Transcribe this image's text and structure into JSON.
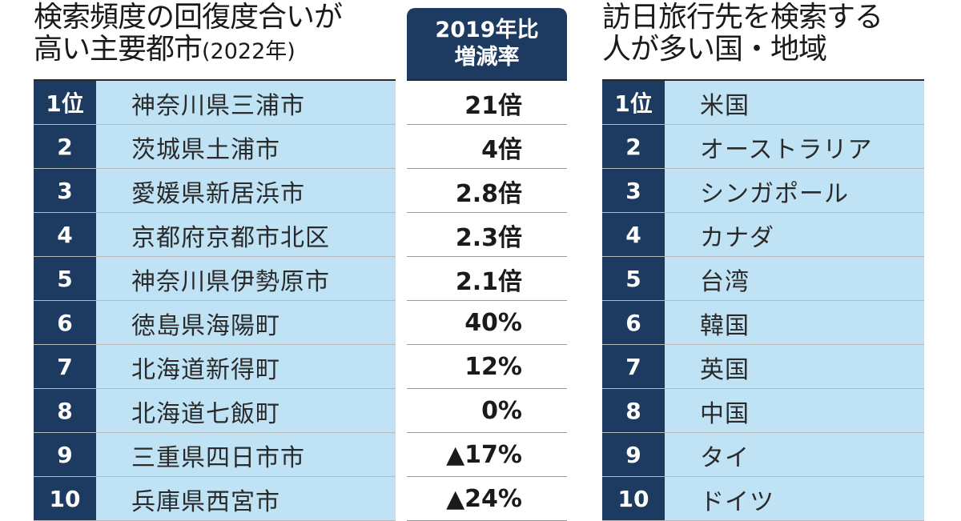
{
  "left": {
    "title_line1": "検索頻度の回復度合いが",
    "title_line2": "高い主要都市",
    "title_year": "(2022年)",
    "rate_header_line1": "2019年比",
    "rate_header_line2": "増減率",
    "rows": [
      {
        "rank": "1位",
        "name": "神奈川県三浦市",
        "rate": "21倍"
      },
      {
        "rank": "2",
        "name": "茨城県土浦市",
        "rate": "4倍"
      },
      {
        "rank": "3",
        "name": "愛媛県新居浜市",
        "rate": "2.8倍"
      },
      {
        "rank": "4",
        "name": "京都府京都市北区",
        "rate": "2.3倍"
      },
      {
        "rank": "5",
        "name": "神奈川県伊勢原市",
        "rate": "2.1倍"
      },
      {
        "rank": "6",
        "name": "徳島県海陽町",
        "rate": "40%"
      },
      {
        "rank": "7",
        "name": "北海道新得町",
        "rate": "12%"
      },
      {
        "rank": "8",
        "name": "北海道七飯町",
        "rate": "0%"
      },
      {
        "rank": "9",
        "name": "三重県四日市市",
        "rate": "▲17%"
      },
      {
        "rank": "10",
        "name": "兵庫県西宮市",
        "rate": "▲24%"
      }
    ]
  },
  "right": {
    "title_line1": "訪日旅行先を検索する",
    "title_line2": "人が多い国・地域",
    "rows": [
      {
        "rank": "1位",
        "name": "米国"
      },
      {
        "rank": "2",
        "name": "オーストラリア"
      },
      {
        "rank": "3",
        "name": "シンガポール"
      },
      {
        "rank": "4",
        "name": "カナダ"
      },
      {
        "rank": "5",
        "name": "台湾"
      },
      {
        "rank": "6",
        "name": "韓国"
      },
      {
        "rank": "7",
        "name": "英国"
      },
      {
        "rank": "8",
        "name": "中国"
      },
      {
        "rank": "9",
        "name": "タイ"
      },
      {
        "rank": "10",
        "name": "ドイツ"
      }
    ]
  }
}
